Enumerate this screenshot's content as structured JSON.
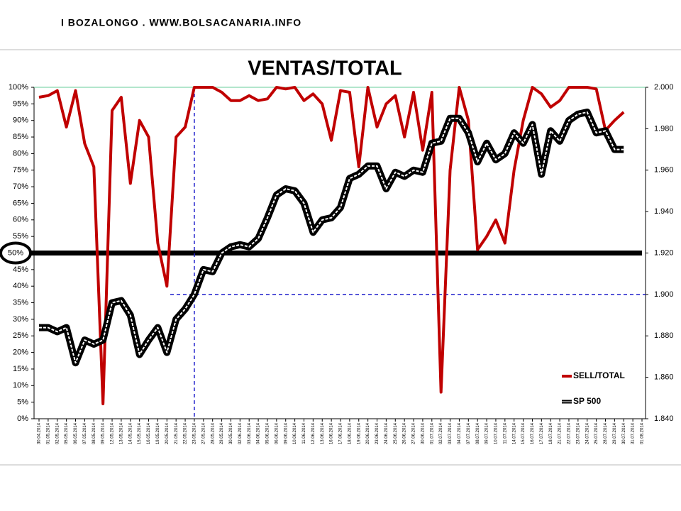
{
  "header": "I BOZALONGO . WWW.BOLSACANARIA.INFO",
  "chart_data": {
    "type": "line",
    "title": "VENTAS/TOTAL",
    "categories": [
      "30.04.2014",
      "01.05.2014",
      "02.05.2014",
      "05.05.2014",
      "06.05.2014",
      "07.05.2014",
      "08.05.2014",
      "09.05.2014",
      "12.05.2014",
      "13.05.2014",
      "14.05.2014",
      "15.05.2014",
      "16.05.2014",
      "19.05.2014",
      "20.05.2014",
      "21.05.2014",
      "22.05.2014",
      "23.05.2014",
      "27.05.2014",
      "28.05.2014",
      "29.05.2014",
      "30.05.2014",
      "02.06.2014",
      "03.06.2014",
      "04.06.2014",
      "05.06.2014",
      "06.06.2014",
      "09.06.2014",
      "10.06.2014",
      "11.06.2014",
      "12.06.2014",
      "13.06.2014",
      "16.06.2014",
      "17.06.2014",
      "18.06.2014",
      "19.06.2014",
      "20.06.2014",
      "23.06.2014",
      "24.06.2014",
      "25.06.2014",
      "26.06.2014",
      "27.06.2014",
      "30.06.2014",
      "01.07.2014",
      "02.07.2014",
      "03.07.2014",
      "04.07.2014",
      "07.07.2014",
      "08.07.2014",
      "09.07.2014",
      "10.07.2014",
      "11.07.2014",
      "14.07.2014",
      "15.07.2014",
      "16.07.2014",
      "17.07.2014",
      "18.07.2014",
      "21.07.2014",
      "22.07.2014",
      "23.07.2014",
      "24.07.2014",
      "25.07.2014",
      "28.07.2014",
      "29.07.2014",
      "30.07.2014",
      "31.07.2014",
      "01.08.2014"
    ],
    "series": [
      {
        "name": "SELL/TOTAL",
        "color": "#c00000",
        "values": [
          97,
          97.5,
          99,
          88,
          99,
          83,
          76,
          4.5,
          93,
          97,
          71,
          90,
          85,
          53,
          40,
          85,
          88,
          100,
          100,
          100,
          98.5,
          96,
          96,
          97.5,
          96,
          96.5,
          100,
          99.5,
          100,
          96,
          98,
          95,
          84,
          99,
          98.5,
          76,
          100,
          88,
          95,
          97.5,
          85,
          98.5,
          81,
          98.5,
          8,
          75,
          100,
          90,
          51,
          55,
          60,
          53,
          75,
          90,
          100,
          98,
          94,
          96,
          100,
          100,
          100,
          99.5,
          87,
          90,
          92.5,
          null,
          null
        ]
      },
      {
        "name": "SP 500",
        "color": "#000000",
        "axis": "y2",
        "values": [
          1884,
          1884,
          1882,
          1884,
          1867,
          1878,
          1876,
          1878,
          1896,
          1897,
          1890,
          1871,
          1878,
          1884,
          1872,
          1888,
          1893,
          1900,
          1912,
          1911,
          1920,
          1923,
          1924,
          1923,
          1927,
          1937,
          1948,
          1951,
          1950,
          1944,
          1930,
          1936,
          1937,
          1942,
          1956,
          1958,
          1962,
          1962,
          1951,
          1959,
          1957,
          1960,
          1959,
          1973,
          1974,
          1985,
          1985,
          1978,
          1964,
          1973,
          1965,
          1968,
          1978,
          1973,
          1982,
          1958,
          1979,
          1974,
          1984,
          1987,
          1988,
          1978,
          1979,
          1970,
          1970,
          null,
          null
        ]
      }
    ],
    "ylim": [
      0,
      100
    ],
    "yticks": [
      {
        "value": 0,
        "label": "0%"
      },
      {
        "value": 5,
        "label": "5%"
      },
      {
        "value": 10,
        "label": "10%"
      },
      {
        "value": 15,
        "label": "15%"
      },
      {
        "value": 20,
        "label": "20%"
      },
      {
        "value": 25,
        "label": "25%"
      },
      {
        "value": 30,
        "label": "30%"
      },
      {
        "value": 35,
        "label": "35%"
      },
      {
        "value": 40,
        "label": "40%"
      },
      {
        "value": 45,
        "label": "45%"
      },
      {
        "value": 50,
        "label": "50%"
      },
      {
        "value": 55,
        "label": "55%"
      },
      {
        "value": 60,
        "label": "60%"
      },
      {
        "value": 65,
        "label": "65%"
      },
      {
        "value": 70,
        "label": "70%"
      },
      {
        "value": 75,
        "label": "75%"
      },
      {
        "value": 80,
        "label": "80%"
      },
      {
        "value": 85,
        "label": "85%"
      },
      {
        "value": 90,
        "label": "90%"
      },
      {
        "value": 95,
        "label": "95%"
      },
      {
        "value": 100,
        "label": "100%"
      }
    ],
    "y2lim": [
      1840,
      2000
    ],
    "y2ticks": [
      {
        "value": 1840,
        "label": "1.840"
      },
      {
        "value": 1860,
        "label": "1.860"
      },
      {
        "value": 1880,
        "label": "1.880"
      },
      {
        "value": 1900,
        "label": "1.900"
      },
      {
        "value": 1920,
        "label": "1.920"
      },
      {
        "value": 1940,
        "label": "1.940"
      },
      {
        "value": 1960,
        "label": "1.960"
      },
      {
        "value": 1980,
        "label": "1.980"
      },
      {
        "value": 2000,
        "label": "2.000"
      }
    ],
    "reference_y": 50,
    "reference_y2": 1900,
    "reference_x": "23.05.2014",
    "legend": "bottom-right"
  }
}
